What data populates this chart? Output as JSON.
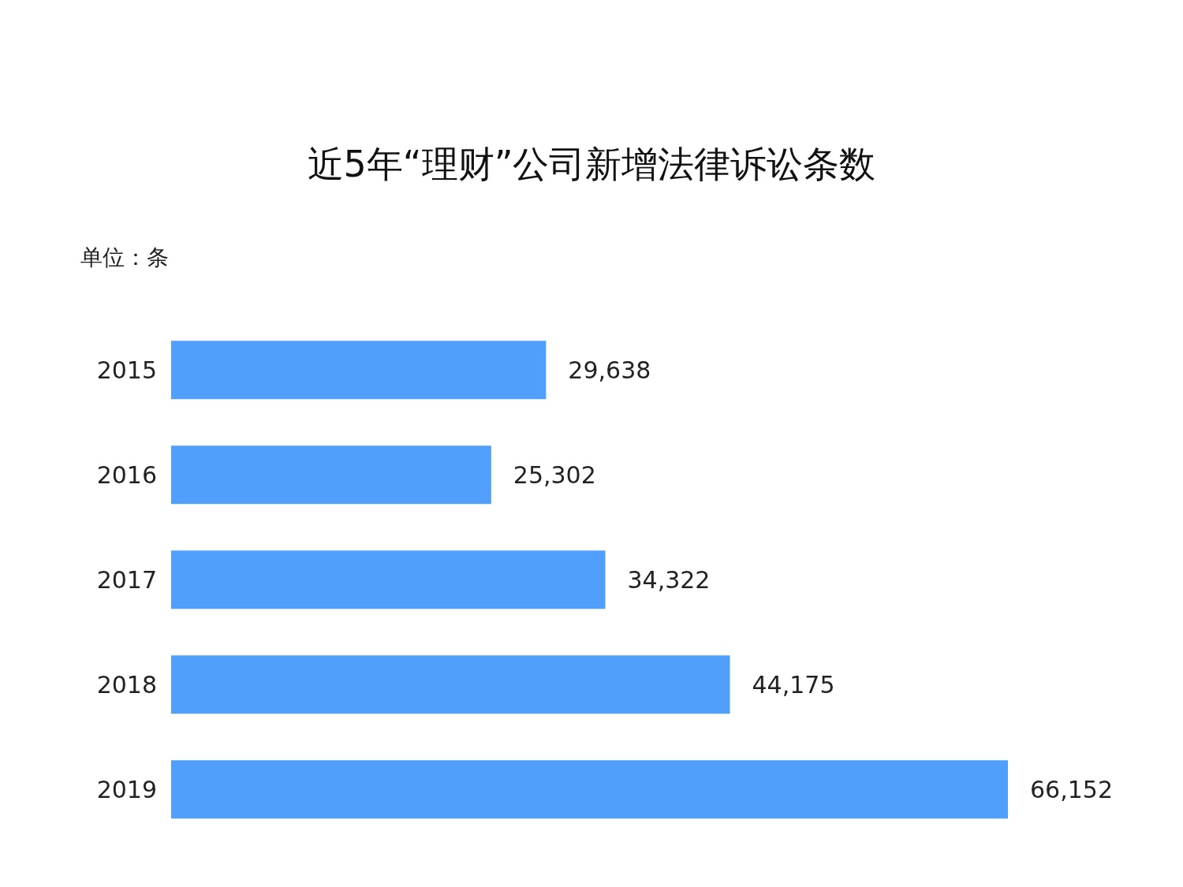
{
  "chart_data": {
    "type": "bar",
    "orientation": "horizontal",
    "title": "近5年“理财”公司新增法律诉讼条数",
    "annotations": [
      "单位：条"
    ],
    "categories": [
      "2015",
      "2016",
      "2017",
      "2018",
      "2019"
    ],
    "values": [
      29638,
      25302,
      34322,
      44175,
      66152
    ],
    "color": "#4f9ffb",
    "data_labels": true,
    "value_labels": [
      "29,638",
      "25,302",
      "34,322",
      "44,175",
      "66,152"
    ],
    "grid": false,
    "legend": false
  }
}
